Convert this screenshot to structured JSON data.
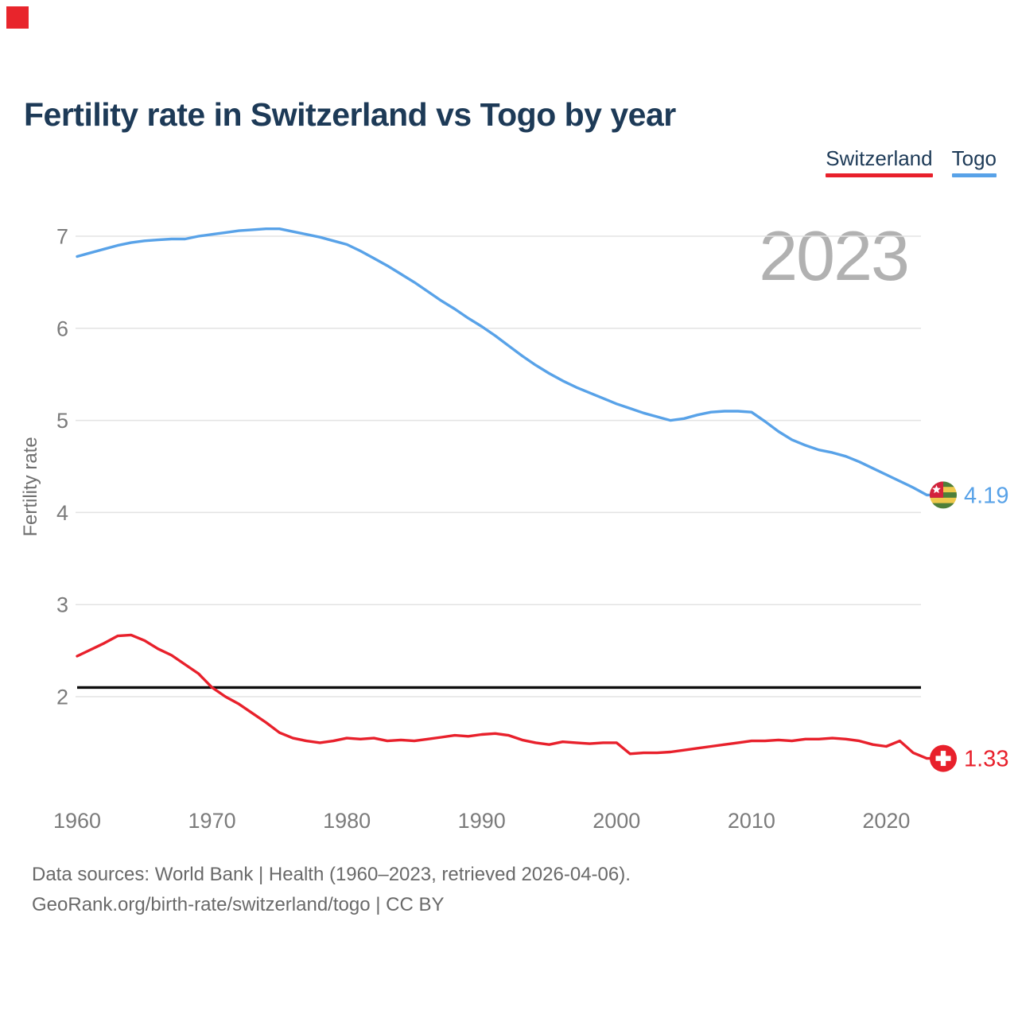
{
  "decorations": {
    "corner_square_color": "#e8252c"
  },
  "header": {
    "title": "Fertility rate in Switzerland vs Togo by year"
  },
  "legend": [
    {
      "label": "Switzerland",
      "color": "#e8202b"
    },
    {
      "label": "Togo",
      "color": "#58a2e8"
    }
  ],
  "watermark": "2023",
  "footer": {
    "line1": "Data sources: World Bank | Health (1960–2023, retrieved 2026-04-06).",
    "line2": "GeoRank.org/birth-rate/switzerland/togo | CC BY"
  },
  "chart_data": {
    "type": "line",
    "title": "Fertility rate in Switzerland vs Togo by year",
    "xlabel": "",
    "ylabel": "Fertility rate",
    "start_year": 1960,
    "end_year": 2023,
    "xlim": [
      1960,
      2023
    ],
    "ylim": [
      1.1,
      7.6
    ],
    "x_ticks": [
      1960,
      1970,
      1980,
      1990,
      2000,
      2010,
      2020
    ],
    "y_ticks": [
      2,
      3,
      4,
      5,
      6,
      7
    ],
    "grid": "horizontal",
    "legend_position": "top-right",
    "reference_line": {
      "value": 2.1,
      "color": "#0d0d0d"
    },
    "colors": {
      "grid": "#e3e3e3",
      "tick_text": "#7b7b7b",
      "axis_label": "#6f6f6f",
      "watermark": "#b1b1b1"
    },
    "series": [
      {
        "name": "Switzerland",
        "color": "#e8202b",
        "flag": "switzerland",
        "end_label": "1.33",
        "values": [
          2.44,
          2.51,
          2.58,
          2.66,
          2.67,
          2.61,
          2.52,
          2.45,
          2.35,
          2.25,
          2.1,
          2.0,
          1.92,
          1.82,
          1.72,
          1.61,
          1.55,
          1.52,
          1.5,
          1.52,
          1.55,
          1.54,
          1.55,
          1.52,
          1.53,
          1.52,
          1.54,
          1.56,
          1.58,
          1.57,
          1.59,
          1.6,
          1.58,
          1.53,
          1.5,
          1.48,
          1.51,
          1.5,
          1.49,
          1.5,
          1.5,
          1.38,
          1.39,
          1.39,
          1.4,
          1.42,
          1.44,
          1.46,
          1.48,
          1.5,
          1.52,
          1.52,
          1.53,
          1.52,
          1.54,
          1.54,
          1.55,
          1.54,
          1.52,
          1.48,
          1.46,
          1.52,
          1.39,
          1.33
        ]
      },
      {
        "name": "Togo",
        "color": "#58a2e8",
        "flag": "togo",
        "end_label": "4.19",
        "values": [
          6.78,
          6.82,
          6.86,
          6.9,
          6.93,
          6.95,
          6.96,
          6.97,
          6.97,
          7.0,
          7.02,
          7.04,
          7.06,
          7.07,
          7.08,
          7.08,
          7.05,
          7.02,
          6.99,
          6.95,
          6.91,
          6.84,
          6.76,
          6.68,
          6.59,
          6.5,
          6.4,
          6.3,
          6.21,
          6.11,
          6.02,
          5.92,
          5.81,
          5.7,
          5.6,
          5.51,
          5.43,
          5.36,
          5.3,
          5.24,
          5.18,
          5.13,
          5.08,
          5.04,
          5.0,
          5.02,
          5.06,
          5.09,
          5.1,
          5.1,
          5.09,
          4.99,
          4.88,
          4.79,
          4.73,
          4.68,
          4.65,
          4.61,
          4.55,
          4.48,
          4.41,
          4.34,
          4.27,
          4.19
        ]
      }
    ],
    "end_markers": {
      "togo_flag_colors": [
        "#4e7f3a",
        "#efc94c",
        "#d3223c",
        "#ffffff"
      ],
      "swiss_flag_colors": [
        "#e8202b",
        "#ffffff"
      ]
    }
  }
}
